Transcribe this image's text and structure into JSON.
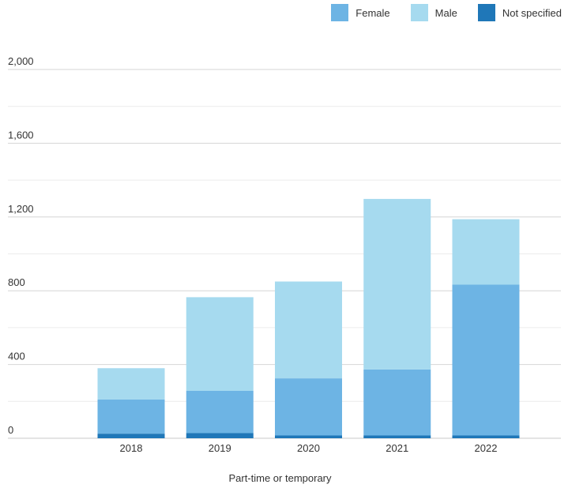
{
  "chart_data": {
    "type": "bar",
    "stacked": true,
    "categories": [
      "2018",
      "2019",
      "2020",
      "2021",
      "2022"
    ],
    "series": [
      {
        "name": "Not specified",
        "color": "#1f77b8",
        "values": [
          25,
          28,
          15,
          15,
          15
        ]
      },
      {
        "name": "Female",
        "color": "#6db4e4",
        "values": [
          185,
          229,
          310,
          358,
          818
        ]
      },
      {
        "name": "Male",
        "color": "#a6daef",
        "values": [
          170,
          508,
          525,
          925,
          355
        ]
      }
    ],
    "legend_order": [
      "Female",
      "Male",
      "Not specified"
    ],
    "ylim": [
      0,
      2000
    ],
    "yticks": [
      0,
      400,
      800,
      1200,
      1600,
      2000
    ],
    "ytick_labels": [
      "0",
      "400",
      "800",
      "1,200",
      "1,600",
      "2,000"
    ],
    "minor_gridlines": [
      200,
      600,
      1000,
      1400,
      1800
    ],
    "xlabel": "Part-time or temporary",
    "ylabel": "",
    "title": "",
    "legend_position": "top-right",
    "grid": true
  }
}
